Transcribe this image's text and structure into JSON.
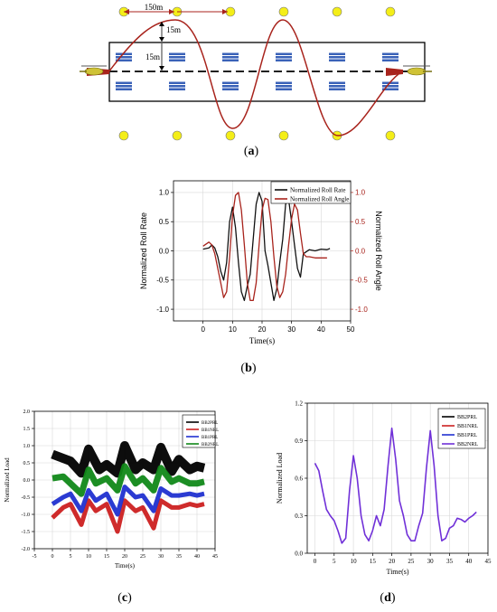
{
  "captions": {
    "a": "a",
    "b": "b",
    "c": "c",
    "d": "d"
  },
  "panel_a": {
    "dim_horizontal": "150m",
    "dim_vertical_upper": "15m",
    "dim_vertical_lower": "15m",
    "colors": {
      "dot": "#f4ee18",
      "box": "#000000",
      "path": "#a8231c",
      "arrow": "#d0392a",
      "ship": "#3a62b8",
      "helicopter": "#cfc236"
    },
    "icons": [
      "helicopter-icon",
      "ship-icon"
    ]
  },
  "chart_data": [
    {
      "id": "b",
      "type": "line",
      "xlabel": "Time(s)",
      "ylabel_left": "Normalized Roll Rate",
      "ylabel_right": "Normalized Roll Angle",
      "xlim": [
        -10,
        50
      ],
      "ylim": [
        -1.2,
        1.2
      ],
      "xticks": [
        0,
        10,
        20,
        30,
        40,
        50
      ],
      "yticks": [
        "-1.0",
        "-0.5",
        "0.0",
        "0.5",
        "1.0"
      ],
      "legend_position": "top-right",
      "grid": true,
      "series": [
        {
          "name": "Normalized Roll Rate",
          "color": "#111111",
          "x": [
            0,
            2,
            3,
            4,
            5,
            6,
            7,
            8,
            9,
            10,
            11,
            12,
            13,
            14,
            15,
            16,
            17,
            18,
            19,
            20,
            21,
            22,
            23,
            24,
            25,
            26,
            27,
            28,
            29,
            30,
            31,
            32,
            33,
            34,
            36,
            38,
            40,
            42,
            43
          ],
          "y": [
            0.03,
            0.05,
            0.1,
            0.05,
            -0.1,
            -0.35,
            -0.5,
            -0.2,
            0.5,
            0.75,
            0.4,
            -0.2,
            -0.7,
            -0.85,
            -0.6,
            -0.4,
            0.2,
            0.8,
            1.0,
            0.85,
            0.0,
            -0.25,
            -0.55,
            -0.85,
            -0.65,
            -0.2,
            0.2,
            0.8,
            0.88,
            0.5,
            0.1,
            -0.3,
            -0.45,
            -0.05,
            0.02,
            0.0,
            0.03,
            0.02,
            0.04
          ]
        },
        {
          "name": "Normalized Roll Angle",
          "color": "#a8231c",
          "x": [
            0,
            2,
            3,
            4,
            5,
            6,
            7,
            8,
            9,
            10,
            11,
            12,
            13,
            14,
            15,
            16,
            17,
            18,
            19,
            20,
            21,
            22,
            23,
            24,
            25,
            26,
            27,
            28,
            29,
            30,
            31,
            32,
            33,
            34,
            35,
            36,
            38,
            40,
            42
          ],
          "y": [
            0.08,
            0.15,
            0.1,
            -0.05,
            -0.3,
            -0.55,
            -0.8,
            -0.7,
            -0.1,
            0.6,
            0.95,
            1.0,
            0.7,
            0.1,
            -0.55,
            -0.85,
            -0.85,
            -0.55,
            0.1,
            0.7,
            0.9,
            0.88,
            0.5,
            -0.1,
            -0.6,
            -0.8,
            -0.7,
            -0.4,
            0.1,
            0.55,
            0.8,
            0.7,
            0.3,
            -0.05,
            -0.1,
            -0.1,
            -0.12,
            -0.12,
            -0.12
          ]
        }
      ]
    },
    {
      "id": "c",
      "type": "line",
      "xlabel": "Time(s)",
      "ylabel": "Normalized Load",
      "xlim": [
        -5,
        45
      ],
      "ylim": [
        -2.0,
        2.0
      ],
      "xticks": [
        -5,
        0,
        5,
        10,
        15,
        20,
        25,
        30,
        35,
        40,
        45
      ],
      "yticks": [
        "-2.0",
        "-1.5",
        "-1.0",
        "-0.5",
        "0.0",
        "0.5",
        "1.0",
        "1.5",
        "2.0"
      ],
      "legend_position": "top-right",
      "grid": true,
      "series": [
        {
          "name": "BB2PRL",
          "color": "#000000",
          "x": [
            0,
            5,
            8,
            10,
            13,
            15,
            18,
            20,
            23,
            25,
            28,
            30,
            33,
            35,
            38,
            40,
            42
          ],
          "y": [
            0.75,
            0.55,
            0.2,
            0.9,
            0.3,
            0.45,
            0.2,
            1.0,
            0.3,
            0.5,
            0.3,
            0.95,
            0.25,
            0.6,
            0.3,
            0.4,
            0.35
          ]
        },
        {
          "name": "BB1NRL",
          "color": "#cc2020",
          "x": [
            0,
            3,
            5,
            8,
            10,
            12,
            15,
            18,
            20,
            23,
            25,
            28,
            30,
            33,
            35,
            38,
            40,
            42
          ],
          "y": [
            -1.1,
            -0.8,
            -0.7,
            -1.3,
            -0.6,
            -0.9,
            -0.7,
            -1.5,
            -0.6,
            -0.9,
            -0.8,
            -1.4,
            -0.6,
            -0.8,
            -0.8,
            -0.7,
            -0.75,
            -0.7
          ]
        },
        {
          "name": "BB1PRL",
          "color": "#2030d0",
          "x": [
            0,
            3,
            5,
            8,
            10,
            12,
            15,
            18,
            20,
            23,
            25,
            28,
            30,
            33,
            35,
            38,
            40,
            42
          ],
          "y": [
            -0.7,
            -0.5,
            -0.4,
            -0.9,
            -0.3,
            -0.6,
            -0.4,
            -1.0,
            -0.2,
            -0.5,
            -0.45,
            -0.9,
            -0.25,
            -0.45,
            -0.45,
            -0.4,
            -0.45,
            -0.4
          ]
        },
        {
          "name": "BB2NRL",
          "color": "#108818",
          "x": [
            0,
            3,
            5,
            8,
            10,
            12,
            15,
            18,
            20,
            23,
            25,
            28,
            30,
            33,
            35,
            38,
            40,
            42
          ],
          "y": [
            0.05,
            0.1,
            -0.1,
            -0.4,
            0.3,
            -0.1,
            0.05,
            -0.3,
            0.4,
            -0.1,
            0.05,
            -0.3,
            0.35,
            -0.05,
            0.05,
            -0.1,
            -0.1,
            -0.05
          ]
        }
      ]
    },
    {
      "id": "d",
      "type": "line",
      "xlabel": "Time(s)",
      "ylabel": "Normalized Load",
      "xlim": [
        -2,
        45
      ],
      "ylim": [
        0.0,
        1.2
      ],
      "xticks": [
        0,
        5,
        10,
        15,
        20,
        25,
        30,
        35,
        40,
        45
      ],
      "yticks": [
        "0.0",
        "0.3",
        "0.6",
        "0.9",
        "1.2"
      ],
      "legend_position": "top-right",
      "grid": true,
      "series": [
        {
          "name": "BB2PRL",
          "color": "#000000",
          "x": [],
          "y": []
        },
        {
          "name": "BB1NRL",
          "color": "#cc2020",
          "x": [],
          "y": []
        },
        {
          "name": "BB1PRL",
          "color": "#2030d0",
          "x": [],
          "y": []
        },
        {
          "name": "BB2NRL",
          "color": "#7030d8",
          "x": [
            0,
            1,
            2,
            3,
            4,
            5,
            6,
            7,
            8,
            9,
            10,
            11,
            12,
            13,
            14,
            15,
            16,
            17,
            18,
            19,
            20,
            21,
            22,
            23,
            24,
            25,
            26,
            27,
            28,
            29,
            30,
            31,
            32,
            33,
            34,
            35,
            36,
            37,
            38,
            39,
            40,
            41,
            42
          ],
          "y": [
            0.72,
            0.66,
            0.5,
            0.35,
            0.3,
            0.26,
            0.18,
            0.08,
            0.12,
            0.5,
            0.78,
            0.6,
            0.3,
            0.15,
            0.1,
            0.18,
            0.3,
            0.22,
            0.35,
            0.7,
            1.0,
            0.75,
            0.42,
            0.3,
            0.15,
            0.1,
            0.1,
            0.22,
            0.32,
            0.68,
            0.98,
            0.7,
            0.3,
            0.1,
            0.12,
            0.2,
            0.22,
            0.28,
            0.27,
            0.25,
            0.28,
            0.3,
            0.33
          ]
        }
      ]
    }
  ]
}
